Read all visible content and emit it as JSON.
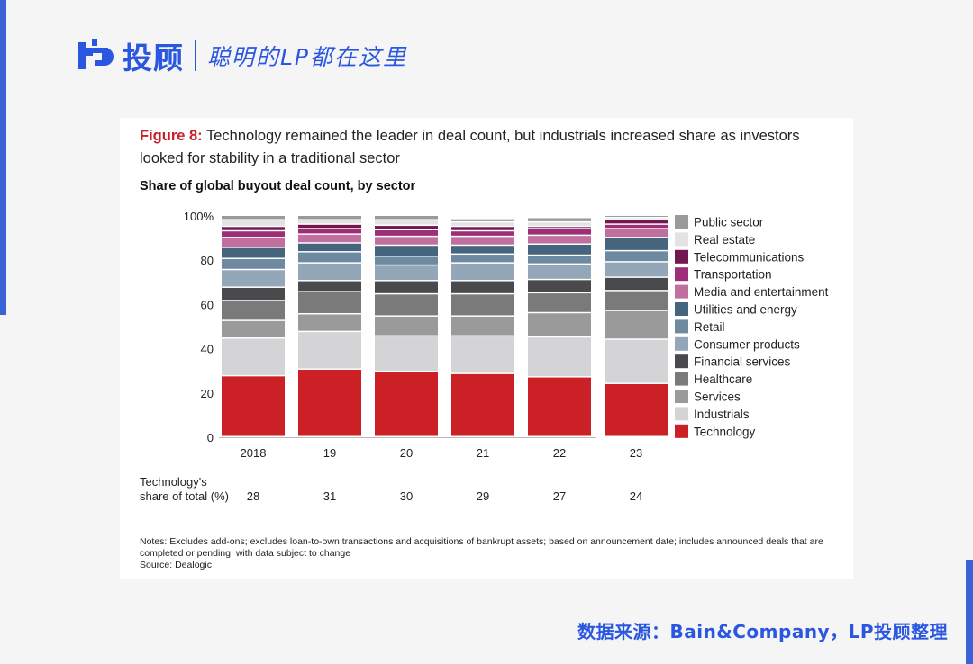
{
  "brand": {
    "name": "投顾",
    "slogan": "聪明的LP都在这里",
    "color": "#2a57e0"
  },
  "figure": {
    "label": "Figure 8:",
    "title": "Technology remained the leader in deal count, but industrials increased share as investors looked for stability in a traditional sector",
    "subtitle": "Share of global buyout deal count, by sector"
  },
  "chart_data": {
    "type": "bar",
    "stacked": true,
    "title": "Share of global buyout deal count, by sector",
    "categories": [
      "2018",
      "19",
      "20",
      "21",
      "22",
      "23"
    ],
    "ylim": [
      0,
      100
    ],
    "yticks": [
      "0",
      "20",
      "40",
      "60",
      "80",
      "100%"
    ],
    "ytick_values": [
      0,
      20,
      40,
      60,
      80,
      100
    ],
    "legend_position": "right",
    "series": [
      {
        "name": "Technology",
        "color": "#cc2027",
        "values": [
          27.5,
          30.5,
          29.5,
          28.5,
          27,
          24
        ]
      },
      {
        "name": "Industrials",
        "color": "#d4d4d6",
        "values": [
          17,
          17,
          16,
          17,
          18,
          20
        ]
      },
      {
        "name": "Services",
        "color": "#9a9a9a",
        "values": [
          8,
          8,
          9,
          9,
          11,
          13
        ]
      },
      {
        "name": "Healthcare",
        "color": "#7a7a7a",
        "values": [
          9,
          10,
          10,
          10,
          9,
          9
        ]
      },
      {
        "name": "Financial services",
        "color": "#4a4a4c",
        "values": [
          6,
          5,
          6,
          6,
          6,
          6
        ]
      },
      {
        "name": "Consumer products",
        "color": "#93a7b8",
        "values": [
          8,
          8,
          7,
          8,
          7,
          7
        ]
      },
      {
        "name": "Retail",
        "color": "#6e8aa1",
        "values": [
          5,
          5,
          4,
          4,
          4,
          5
        ]
      },
      {
        "name": "Utilities and energy",
        "color": "#45657e",
        "values": [
          5,
          4,
          5,
          4,
          5,
          6
        ]
      },
      {
        "name": "Media and entertainment",
        "color": "#c06f9e",
        "values": [
          4.5,
          4,
          4,
          4,
          4,
          4
        ]
      },
      {
        "name": "Transportation",
        "color": "#9d2f78",
        "values": [
          3,
          2.5,
          3,
          2.5,
          3,
          2
        ]
      },
      {
        "name": "Telecommunications",
        "color": "#73174f",
        "values": [
          2,
          2,
          2,
          2,
          1,
          2
        ]
      },
      {
        "name": "Real estate",
        "color": "#e3e3e5",
        "values": [
          3,
          2,
          2.5,
          2,
          2,
          1
        ]
      },
      {
        "name": "Public sector",
        "color": "#9a9a9a",
        "values": [
          2,
          2,
          2,
          1.5,
          2,
          1
        ]
      }
    ],
    "legend_order": [
      "Public sector",
      "Real estate",
      "Telecommunications",
      "Transportation",
      "Media and entertainment",
      "Utilities and energy",
      "Retail",
      "Consumer products",
      "Financial services",
      "Healthcare",
      "Services",
      "Industrials",
      "Technology"
    ]
  },
  "tech_share": {
    "label": "Technology's share of total (%)",
    "values": [
      "28",
      "31",
      "30",
      "29",
      "27",
      "24"
    ]
  },
  "notes": {
    "text": "Notes: Excludes add-ons; excludes loan-to-own transactions and acquisitions of bankrupt assets; based on announcement date; includes announced deals that are completed or pending, with data subject to change",
    "source": "Source: Dealogic"
  },
  "footer": {
    "source_line": "数据来源：Bain&Company，LP投顾整理"
  }
}
